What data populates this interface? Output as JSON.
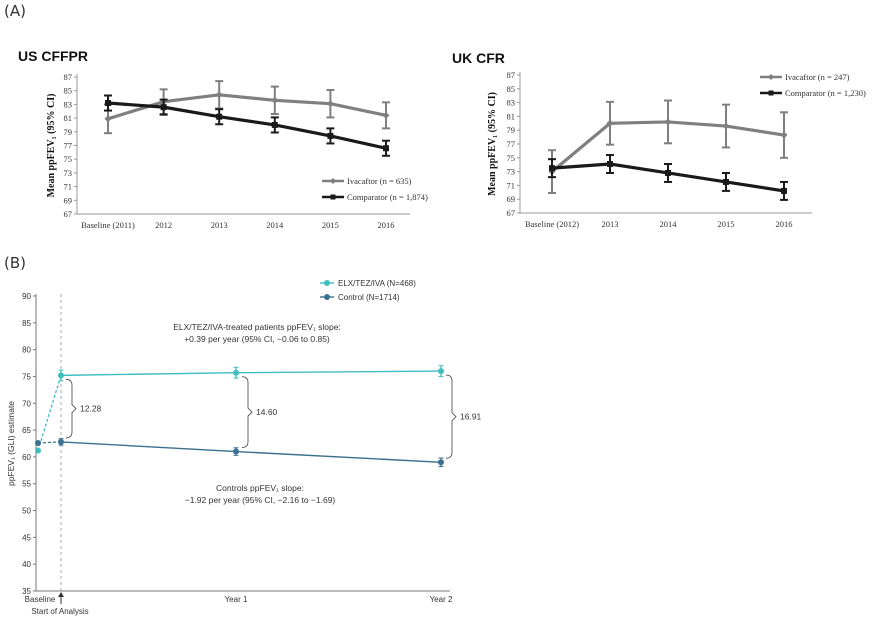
{
  "panels": {
    "a_label": "(A)",
    "b_label": "(B)"
  },
  "chart_data": [
    {
      "type": "line",
      "title": "US CFFPR",
      "ylabel": "Mean ppFEV₁ (95% CI)",
      "xlabel": "",
      "categories": [
        "Baseline (2011)",
        "2012",
        "2013",
        "2014",
        "2015",
        "2016"
      ],
      "ylim": [
        67,
        87
      ],
      "yticks": [
        67,
        69,
        71,
        73,
        75,
        77,
        79,
        81,
        83,
        85,
        87
      ],
      "grid": false,
      "legend_position": "bottom-right",
      "series": [
        {
          "name": "Ivacaftor (n = 635)",
          "color": "#7f7f7f",
          "marker": "diamond",
          "values": [
            80.9,
            83.4,
            84.4,
            83.6,
            83.1,
            81.4
          ],
          "lower": [
            78.8,
            81.6,
            82.4,
            81.6,
            81.1,
            79.5
          ],
          "upper": [
            83.0,
            85.2,
            86.4,
            85.6,
            85.1,
            83.3
          ]
        },
        {
          "name": "Comparator (n = 1,874)",
          "color": "#1a1a1a",
          "marker": "square",
          "values": [
            83.2,
            82.6,
            81.2,
            80.0,
            78.4,
            76.6
          ],
          "lower": [
            82.1,
            81.5,
            80.1,
            78.9,
            77.3,
            75.5
          ],
          "upper": [
            84.3,
            83.7,
            82.3,
            81.1,
            79.5,
            77.7
          ]
        }
      ]
    },
    {
      "type": "line",
      "title": "UK CFR",
      "ylabel": "Mean ppFEV₁ (95% CI)",
      "xlabel": "",
      "categories": [
        "Baseline (2012)",
        "2013",
        "2014",
        "2015",
        "2016"
      ],
      "ylim": [
        67,
        87
      ],
      "yticks": [
        67,
        69,
        71,
        73,
        75,
        77,
        79,
        81,
        83,
        85,
        87
      ],
      "grid": false,
      "legend_position": "top-right",
      "series": [
        {
          "name": "Ivacaftor (n = 247)",
          "color": "#7f7f7f",
          "marker": "diamond",
          "values": [
            73.0,
            80.0,
            80.2,
            79.6,
            78.3
          ],
          "lower": [
            69.9,
            76.9,
            77.1,
            76.5,
            75.0
          ],
          "upper": [
            76.1,
            83.1,
            83.3,
            82.7,
            81.6
          ]
        },
        {
          "name": "Comparator (n = 1,230)",
          "color": "#1a1a1a",
          "marker": "square",
          "values": [
            73.5,
            74.1,
            72.8,
            71.5,
            70.2
          ],
          "lower": [
            72.2,
            72.8,
            71.5,
            70.2,
            68.9
          ],
          "upper": [
            74.8,
            75.4,
            74.1,
            72.8,
            71.5
          ]
        }
      ]
    },
    {
      "type": "line",
      "title": "",
      "ylabel": "ppFEV₁ (GLI) estimate",
      "xlabel": "",
      "categories": [
        "Baseline",
        "Year 1",
        "Year 2"
      ],
      "ylim": [
        35,
        90
      ],
      "yticks": [
        35,
        40,
        45,
        50,
        55,
        60,
        65,
        70,
        75,
        80,
        85,
        90
      ],
      "grid": false,
      "legend_position": "top-center",
      "start_marker_label": "Start of Analysis",
      "series": [
        {
          "name": "ELX/TEZ/IVA (N=468)",
          "color": "#3fbdc1",
          "baseline_value": 61.2,
          "values": [
            75.2,
            75.7,
            76.0
          ],
          "lower": [
            74.2,
            74.7,
            75.0
          ],
          "upper": [
            76.2,
            76.7,
            77.0
          ]
        },
        {
          "name": "Control (N=1714)",
          "color": "#3b6f8f",
          "baseline_value": 62.6,
          "values": [
            62.8,
            61.0,
            59.0
          ],
          "lower": [
            62.2,
            60.3,
            58.2
          ],
          "upper": [
            63.4,
            61.7,
            59.8
          ]
        }
      ],
      "differences": [
        "12.28",
        "14.60",
        "16.91"
      ],
      "annotations": {
        "elx_line1": "ELX/TEZ/IVA-treated patients ppFEV₁ slope:",
        "elx_line2": "+0.39 per year (95% CI, −0.06 to 0.85)",
        "ctrl_line1": "Controls ppFEV₁ slope:",
        "ctrl_line2": "−1.92 per year (95% CI, −2.16 to −1.69)"
      }
    }
  ]
}
